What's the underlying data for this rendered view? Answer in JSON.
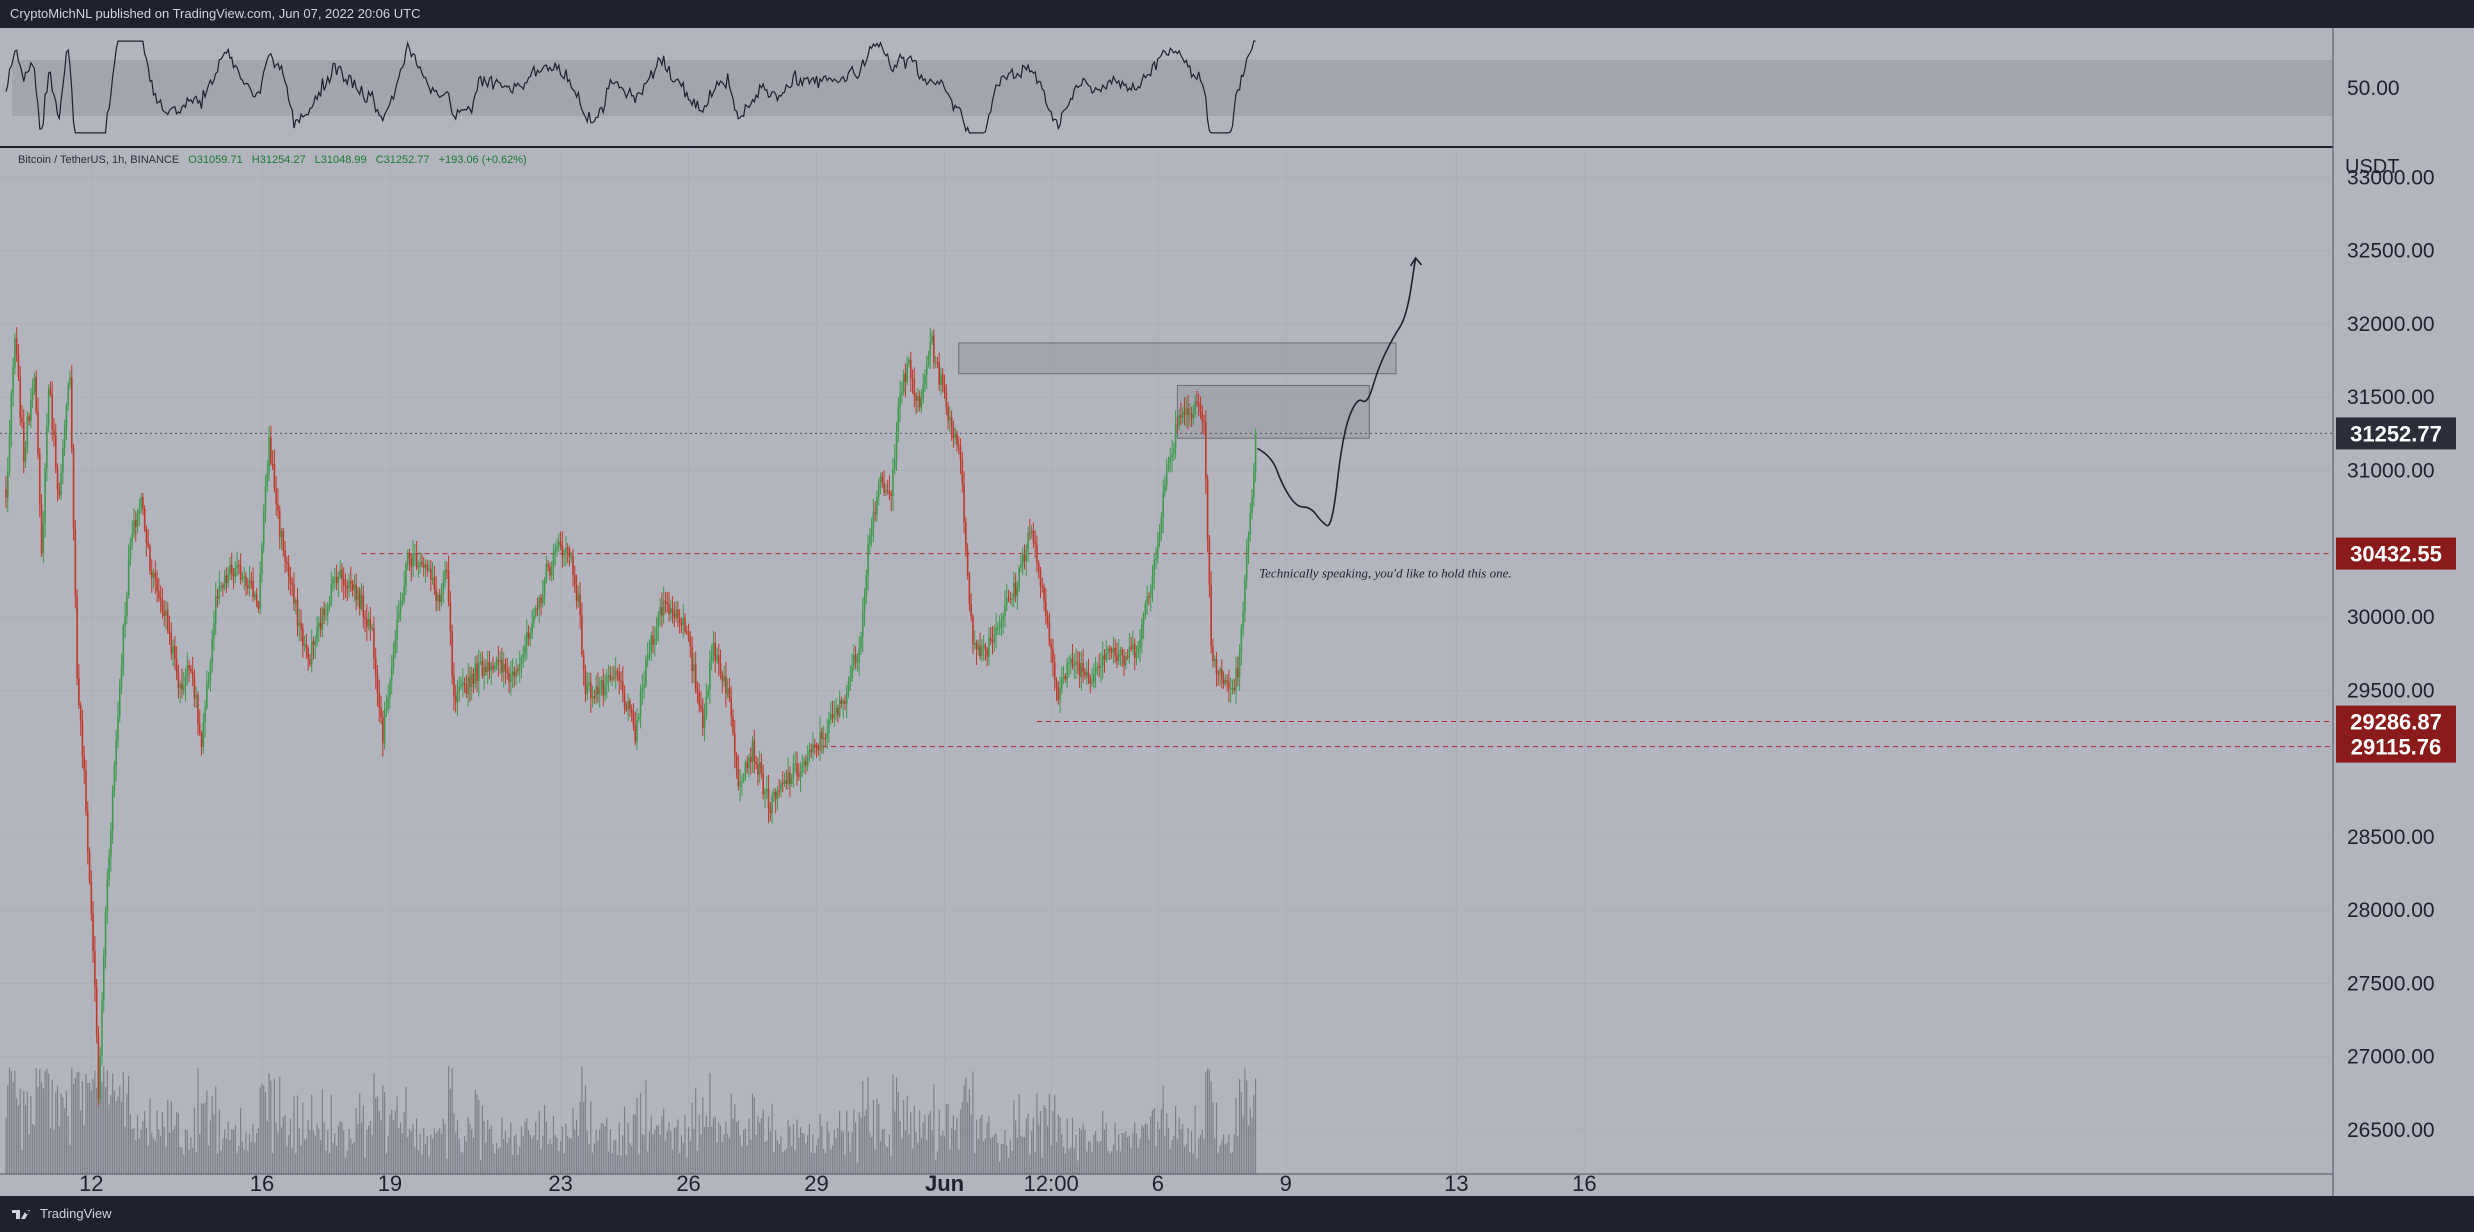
{
  "header": {
    "publisher_text": "CryptoMichNL published on TradingView.com, Jun 07, 2022 20:06 UTC"
  },
  "footer": {
    "brand": "TradingView"
  },
  "ohlc": {
    "symbol": "Bitcoin / TetherUS, 1h, BINANCE",
    "open": "O31059.71",
    "high": "H31254.27",
    "low": "L31048.99",
    "close": "C31252.77",
    "change": "+193.06 (+0.62%)"
  },
  "colors": {
    "background": "#b2b5be",
    "up": "#3f9a4e",
    "down": "#c0392b",
    "level_line": "#b22833",
    "price_label_bg": "#8b1a1a",
    "current_label_bg": "#2a2e39",
    "zone_fill": "#9598a1"
  },
  "chart_data": {
    "type": "candlestick",
    "title": "",
    "currency_label": "USDT",
    "price_axis": {
      "ticks": [
        "33000.00",
        "32500.00",
        "32000.00",
        "31500.00",
        "31000.00",
        "30000.00",
        "29500.00",
        "28500.00",
        "28000.00",
        "27500.00",
        "27000.00",
        "26500.00"
      ],
      "tick_values": [
        33000,
        32500,
        32000,
        31500,
        31000,
        30000,
        29500,
        28500,
        28000,
        27500,
        27000,
        26500
      ],
      "range": [
        26200,
        33200
      ]
    },
    "time_axis": {
      "labels": [
        "12",
        "16",
        "19",
        "23",
        "26",
        "29",
        "Jun",
        "12:00",
        "6",
        "9",
        "13",
        "16"
      ],
      "bold": [
        "Jun"
      ],
      "positions_hours": [
        48,
        144,
        216,
        312,
        384,
        456,
        528,
        588,
        648,
        720,
        816,
        888
      ]
    },
    "price_series_hours": [
      [
        0,
        30800
      ],
      [
        5,
        31900
      ],
      [
        10,
        31100
      ],
      [
        16,
        31700
      ],
      [
        20,
        30400
      ],
      [
        24,
        31600
      ],
      [
        30,
        30800
      ],
      [
        36,
        31700
      ],
      [
        40,
        29600
      ],
      [
        44,
        28900
      ],
      [
        50,
        27500
      ],
      [
        52,
        26700
      ],
      [
        56,
        28000
      ],
      [
        60,
        28800
      ],
      [
        66,
        29900
      ],
      [
        70,
        30500
      ],
      [
        76,
        30800
      ],
      [
        82,
        30300
      ],
      [
        90,
        30000
      ],
      [
        98,
        29500
      ],
      [
        104,
        29700
      ],
      [
        110,
        29100
      ],
      [
        118,
        30100
      ],
      [
        126,
        30300
      ],
      [
        134,
        30300
      ],
      [
        142,
        30100
      ],
      [
        148,
        31200
      ],
      [
        154,
        30600
      ],
      [
        162,
        30100
      ],
      [
        170,
        29700
      ],
      [
        178,
        30000
      ],
      [
        186,
        30300
      ],
      [
        196,
        30200
      ],
      [
        206,
        29900
      ],
      [
        212,
        29200
      ],
      [
        216,
        29600
      ],
      [
        226,
        30400
      ],
      [
        234,
        30400
      ],
      [
        244,
        30100
      ],
      [
        248,
        30300
      ],
      [
        252,
        29400
      ],
      [
        262,
        29600
      ],
      [
        272,
        29700
      ],
      [
        284,
        29600
      ],
      [
        296,
        29900
      ],
      [
        304,
        30300
      ],
      [
        312,
        30500
      ],
      [
        318,
        30400
      ],
      [
        322,
        30100
      ],
      [
        326,
        29500
      ],
      [
        336,
        29500
      ],
      [
        344,
        29600
      ],
      [
        354,
        29200
      ],
      [
        362,
        29800
      ],
      [
        370,
        30100
      ],
      [
        380,
        30000
      ],
      [
        384,
        29800
      ],
      [
        392,
        29300
      ],
      [
        398,
        29800
      ],
      [
        406,
        29500
      ],
      [
        412,
        28900
      ],
      [
        420,
        29100
      ],
      [
        430,
        28700
      ],
      [
        440,
        28900
      ],
      [
        450,
        29000
      ],
      [
        460,
        29200
      ],
      [
        470,
        29400
      ],
      [
        480,
        29800
      ],
      [
        486,
        30600
      ],
      [
        492,
        30900
      ],
      [
        498,
        30800
      ],
      [
        502,
        31500
      ],
      [
        508,
        31700
      ],
      [
        514,
        31400
      ],
      [
        520,
        31900
      ],
      [
        526,
        31600
      ],
      [
        532,
        31300
      ],
      [
        536,
        31200
      ],
      [
        544,
        29800
      ],
      [
        552,
        29800
      ],
      [
        560,
        30000
      ],
      [
        568,
        30200
      ],
      [
        576,
        30600
      ],
      [
        580,
        30400
      ],
      [
        586,
        29900
      ],
      [
        592,
        29500
      ],
      [
        600,
        29700
      ],
      [
        610,
        29600
      ],
      [
        620,
        29800
      ],
      [
        628,
        29700
      ],
      [
        636,
        29800
      ],
      [
        640,
        30000
      ],
      [
        644,
        30200
      ],
      [
        652,
        30900
      ],
      [
        660,
        31400
      ],
      [
        666,
        31400
      ],
      [
        670,
        31500
      ],
      [
        674,
        31300
      ],
      [
        678,
        29800
      ],
      [
        682,
        29600
      ],
      [
        690,
        29500
      ],
      [
        694,
        29700
      ],
      [
        698,
        30400
      ],
      [
        702,
        31050
      ],
      [
        703,
        31252.77
      ]
    ],
    "rsi": {
      "label": "50.00",
      "range": [
        0,
        100
      ],
      "band": [
        30,
        70
      ]
    },
    "horizontal_levels": [
      {
        "price": 30432.55,
        "label": "30432.55",
        "style": "dashed",
        "from_hour": 200
      },
      {
        "price": 29286.87,
        "label": "29286.87",
        "style": "dashed",
        "from_hour": 580
      },
      {
        "price": 29115.76,
        "label": "29115.76",
        "style": "dashed",
        "from_hour": 454
      }
    ],
    "current_price": {
      "price": 31252.77,
      "label": "31252.77"
    },
    "zones": [
      {
        "from_hour": 536,
        "to_hour": 782,
        "top": 31870,
        "bottom": 31660
      },
      {
        "from_hour": 659,
        "to_hour": 767,
        "top": 31580,
        "bottom": 31220
      }
    ],
    "annotation": "Technically speaking, you'd like to hold this one.",
    "projection_path_hours": [
      [
        704,
        31150
      ],
      [
        712,
        31100
      ],
      [
        718,
        30900
      ],
      [
        726,
        30750
      ],
      [
        734,
        30750
      ],
      [
        740,
        30650
      ],
      [
        746,
        30600
      ],
      [
        752,
        31250
      ],
      [
        760,
        31500
      ],
      [
        766,
        31450
      ],
      [
        772,
        31700
      ],
      [
        780,
        31900
      ],
      [
        788,
        32050
      ],
      [
        793,
        32450
      ]
    ]
  }
}
